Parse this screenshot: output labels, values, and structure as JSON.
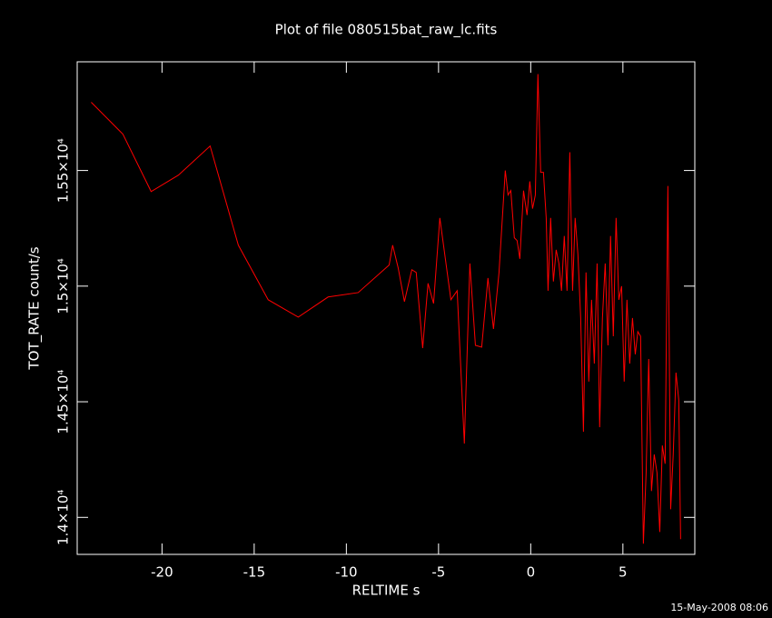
{
  "chart_data": {
    "type": "line",
    "title": "Plot of file 080515bat_raw_lc.fits",
    "x_label": "RELTIME  s",
    "y_label": "TOT_RATE  count/s",
    "footer": "15-May-2008 08:06",
    "color": "#ff0000",
    "xlim": [
      -24.6,
      8.9
    ],
    "ylim": [
      13840,
      15970
    ],
    "xticks": [
      -20,
      -15,
      -10,
      -5,
      0,
      5
    ],
    "yticks": [
      {
        "value": 14000,
        "label": "1.4×10⁴"
      },
      {
        "value": 14500,
        "label": "1.45×10⁴"
      },
      {
        "value": 15000,
        "label": "1.5×10⁴"
      },
      {
        "value": 15500,
        "label": "1.55×10⁴"
      }
    ],
    "x": [
      -23.84,
      -22.12,
      -20.59,
      -19.11,
      -17.39,
      -15.86,
      -14.24,
      -12.61,
      -10.99,
      -9.36,
      -7.68,
      -7.49,
      -7.19,
      -6.85,
      -6.45,
      -6.21,
      -5.86,
      -5.57,
      -5.27,
      -4.93,
      -4.33,
      -3.99,
      -3.6,
      -3.3,
      -3.0,
      -2.66,
      -2.32,
      -2.02,
      -1.72,
      -1.38,
      -1.23,
      -1.08,
      -0.89,
      -0.74,
      -0.59,
      -0.39,
      -0.2,
      -0.05,
      0.1,
      0.25,
      0.39,
      0.54,
      0.69,
      0.84,
      0.94,
      1.08,
      1.23,
      1.38,
      1.53,
      1.67,
      1.82,
      1.97,
      2.12,
      2.27,
      2.41,
      2.56,
      2.71,
      2.86,
      3.0,
      3.15,
      3.3,
      3.45,
      3.6,
      3.74,
      3.89,
      4.04,
      4.19,
      4.33,
      4.48,
      4.63,
      4.78,
      4.93,
      5.07,
      5.22,
      5.37,
      5.52,
      5.67,
      5.81,
      5.96,
      6.11,
      6.26,
      6.4,
      6.55,
      6.7,
      6.85,
      7.0,
      7.14,
      7.29,
      7.44,
      7.59,
      7.73,
      7.88,
      8.03,
      8.13
    ],
    "values": [
      15795,
      15657,
      15409,
      15480,
      15606,
      15177,
      14941,
      14866,
      14953,
      14972,
      15091,
      15177,
      15079,
      14933,
      15071,
      15059,
      14732,
      15012,
      14925,
      15295,
      14941,
      14980,
      14319,
      15098,
      14744,
      14736,
      15035,
      14815,
      15059,
      15500,
      15394,
      15413,
      15209,
      15197,
      15118,
      15413,
      15307,
      15453,
      15335,
      15394,
      15917,
      15492,
      15492,
      15295,
      14980,
      15295,
      15020,
      15157,
      15098,
      14980,
      15217,
      14980,
      15579,
      14980,
      15295,
      15138,
      14862,
      14370,
      15059,
      14587,
      14941,
      14665,
      15098,
      14390,
      14862,
      15098,
      14744,
      15217,
      14783,
      15295,
      14941,
      15000,
      14587,
      14941,
      14665,
      14862,
      14705,
      14803,
      14783,
      13886,
      14193,
      14685,
      14114,
      14272,
      14193,
      13937,
      14311,
      14232,
      15433,
      14035,
      14272,
      14626,
      14508,
      13906
    ]
  }
}
